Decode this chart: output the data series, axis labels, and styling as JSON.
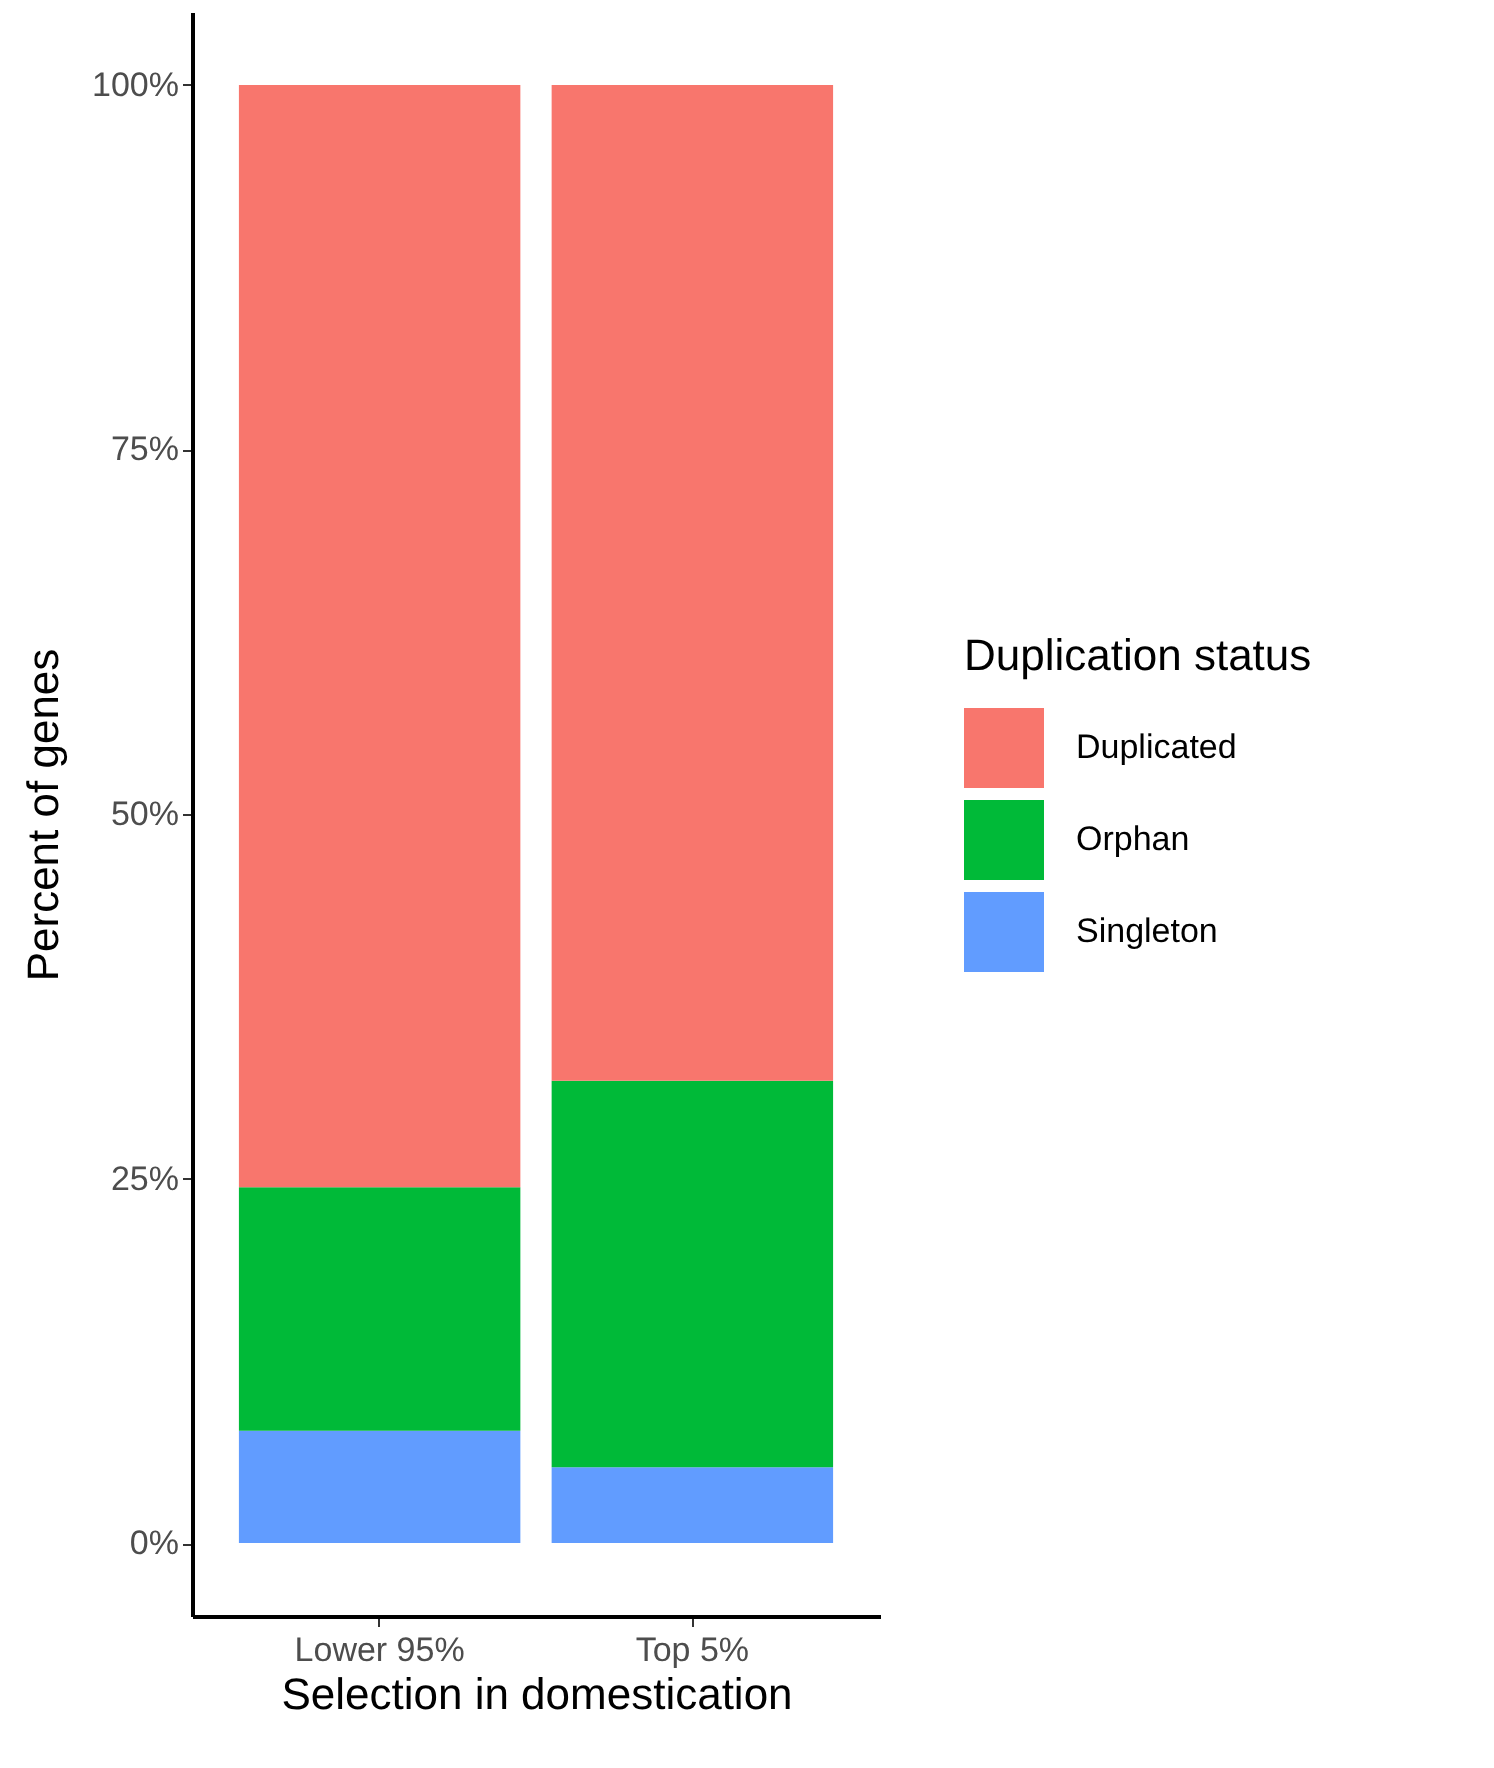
{
  "chart_data": {
    "type": "bar",
    "stacked": true,
    "xlabel": "Selection in domestication",
    "ylabel": "Percent of genes",
    "legend_title": "Duplication status",
    "legend": "right",
    "categories": [
      "Lower 95%",
      "Top 5%"
    ],
    "series": [
      {
        "name": "Singleton",
        "color": "#619cff",
        "values": [
          7.7,
          5.2
        ]
      },
      {
        "name": "Orphan",
        "color": "#00ba38",
        "values": [
          16.7,
          26.5
        ]
      },
      {
        "name": "Duplicated",
        "color": "#f8766d",
        "values": [
          75.6,
          68.3
        ]
      }
    ],
    "ylim": [
      -5,
      105
    ],
    "yticks": [
      {
        "value": 0,
        "label": "0%"
      },
      {
        "value": 25,
        "label": "25%"
      },
      {
        "value": 50,
        "label": "50%"
      },
      {
        "value": 75,
        "label": "75%"
      },
      {
        "value": 100,
        "label": "100%"
      }
    ],
    "grid": false
  }
}
